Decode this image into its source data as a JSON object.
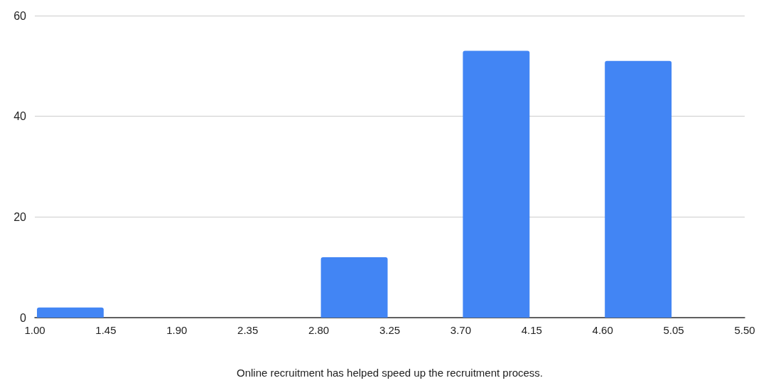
{
  "chart_data": {
    "type": "histogram",
    "xlabel": "Online recruitment has helped speed up the recruitment process.",
    "bins": [
      1.0,
      1.45,
      1.9,
      2.35,
      2.8,
      3.25,
      3.7,
      4.15,
      4.6,
      5.05,
      5.5
    ],
    "values": [
      2,
      0,
      0,
      0,
      12,
      0,
      53,
      0,
      51,
      0
    ],
    "color": "#4285f4",
    "xlim": [
      1.0,
      5.5
    ],
    "xticks": [
      {
        "value": 1.0,
        "label": "1.00"
      },
      {
        "value": 1.45,
        "label": "1.45"
      },
      {
        "value": 1.9,
        "label": "1.90"
      },
      {
        "value": 2.35,
        "label": "2.35"
      },
      {
        "value": 2.8,
        "label": "2.80"
      },
      {
        "value": 3.25,
        "label": "3.25"
      },
      {
        "value": 3.7,
        "label": "3.70"
      },
      {
        "value": 4.15,
        "label": "4.15"
      },
      {
        "value": 4.6,
        "label": "4.60"
      },
      {
        "value": 5.05,
        "label": "5.05"
      },
      {
        "value": 5.5,
        "label": "5.50"
      }
    ],
    "ylim": [
      0,
      60
    ],
    "yticks": [
      0,
      20,
      40,
      60
    ],
    "grid": "y"
  }
}
